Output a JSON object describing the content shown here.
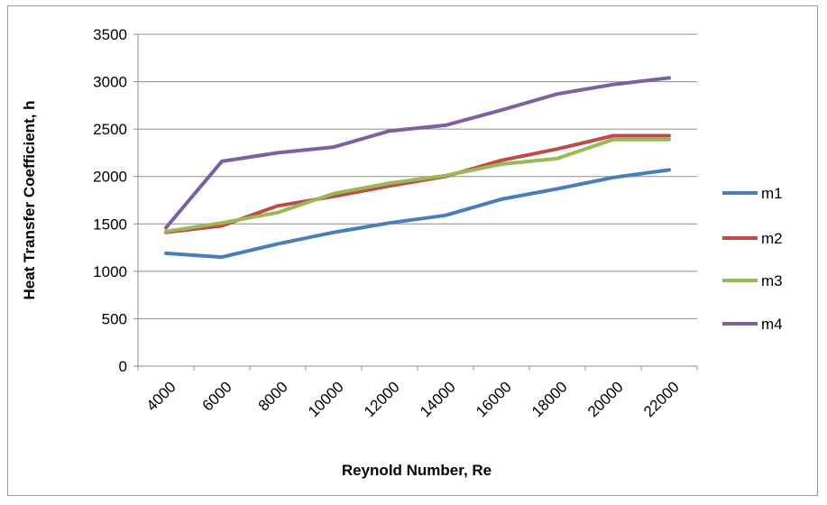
{
  "chart_data": {
    "type": "line",
    "title": "",
    "xlabel": "Reynold Number, Re",
    "ylabel": "Heat Transfer Coefficient, h",
    "x_ticks": [
      "4000",
      "6000",
      "8000",
      "10000",
      "12000",
      "14000",
      "16000",
      "18000",
      "20000",
      "22000"
    ],
    "y_ticks": [
      "0",
      "500",
      "1000",
      "1500",
      "2000",
      "2500",
      "3000",
      "3500"
    ],
    "ylim": [
      0,
      3500
    ],
    "grid": "horizontal",
    "legend_position": "right",
    "x": [
      5000,
      7000,
      9000,
      11000,
      13000,
      15000,
      17000,
      19000,
      21000,
      23000
    ],
    "series": [
      {
        "name": "m1",
        "color": "#4a7ebb",
        "values": [
          1190,
          1150,
          1290,
          1410,
          1510,
          1590,
          1760,
          1870,
          1990,
          2070
        ]
      },
      {
        "name": "m2",
        "color": "#be4b48",
        "values": [
          1410,
          1480,
          1690,
          1790,
          1900,
          2000,
          2170,
          2290,
          2430,
          2430
        ]
      },
      {
        "name": "m3",
        "color": "#98b954",
        "values": [
          1420,
          1510,
          1620,
          1820,
          1930,
          2010,
          2130,
          2190,
          2390,
          2390
        ]
      },
      {
        "name": "m4",
        "color": "#7d60a0",
        "values": [
          1460,
          2160,
          2250,
          2310,
          2480,
          2540,
          2700,
          2870,
          2970,
          3040
        ]
      }
    ]
  }
}
